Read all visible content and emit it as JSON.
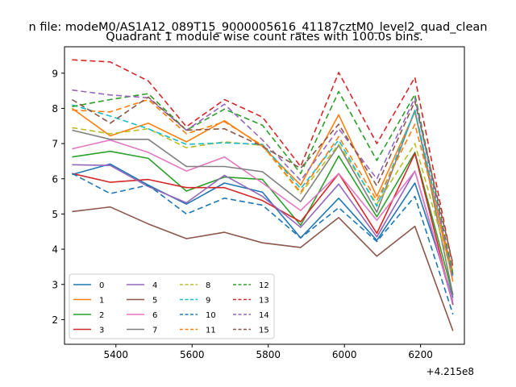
{
  "figure": {
    "suptitle": "n file: modeM0/AS1A12_089T15_9000005616_41187cztM0_level2_quad_clean",
    "title": "Quadrant 1 module wise count rates with 100.0s bins.",
    "x_offset_label": "+4.215e8"
  },
  "chart_data": {
    "type": "line",
    "title": "Quadrant 1 module wise count rates with 100.0s bins.",
    "xlabel": "",
    "ylabel": "",
    "x_offset": 421500000,
    "xlim": [
      5265,
      6315
    ],
    "ylim": [
      1.3,
      9.75
    ],
    "xticks": [
      5400,
      5600,
      5800,
      6000,
      6200
    ],
    "xtick_labels": [
      "5400",
      "5600",
      "5800",
      "6000",
      "6200"
    ],
    "yticks": [
      2,
      3,
      4,
      5,
      6,
      7,
      8,
      9
    ],
    "ytick_labels": [
      "2",
      "3",
      "4",
      "5",
      "6",
      "7",
      "8",
      "9"
    ],
    "x": [
      5285,
      5385,
      5485,
      5585,
      5685,
      5785,
      5885,
      5985,
      6085,
      6185,
      6285
    ],
    "legend_position": "lower-left",
    "legend_columns": 4,
    "series": [
      {
        "name": "0",
        "color": "#1f77b4",
        "dash": "solid",
        "values": [
          6.12,
          6.42,
          5.82,
          5.28,
          5.88,
          5.62,
          4.32,
          5.45,
          4.25,
          5.88,
          2.62
        ]
      },
      {
        "name": "1",
        "color": "#ff7f0e",
        "dash": "solid",
        "values": [
          8.0,
          7.22,
          7.58,
          7.05,
          7.65,
          6.92,
          5.82,
          7.82,
          5.5,
          7.9,
          3.08
        ]
      },
      {
        "name": "2",
        "color": "#2ca02c",
        "dash": "solid",
        "values": [
          6.62,
          6.78,
          6.58,
          5.65,
          6.05,
          5.98,
          4.68,
          6.65,
          4.92,
          6.75,
          2.7
        ]
      },
      {
        "name": "3",
        "color": "#d62728",
        "dash": "solid",
        "values": [
          6.15,
          5.9,
          5.98,
          5.75,
          5.75,
          5.38,
          4.78,
          6.15,
          4.45,
          6.72,
          2.42
        ]
      },
      {
        "name": "4",
        "color": "#9467bd",
        "dash": "solid",
        "values": [
          6.4,
          6.38,
          5.78,
          5.32,
          6.1,
          5.5,
          4.62,
          5.85,
          4.35,
          6.22,
          2.45
        ]
      },
      {
        "name": "5",
        "color": "#8c564b",
        "dash": "solid",
        "values": [
          5.07,
          5.2,
          4.72,
          4.3,
          4.48,
          4.18,
          4.05,
          4.9,
          3.8,
          4.65,
          1.68
        ]
      },
      {
        "name": "6",
        "color": "#e377c2",
        "dash": "solid",
        "values": [
          6.85,
          7.1,
          6.75,
          6.22,
          6.62,
          5.88,
          5.1,
          6.15,
          4.82,
          6.22,
          2.52
        ]
      },
      {
        "name": "7",
        "color": "#7f7f7f",
        "dash": "solid",
        "values": [
          7.38,
          7.12,
          7.12,
          6.35,
          6.35,
          6.2,
          5.35,
          6.95,
          5.05,
          7.95,
          2.7
        ]
      },
      {
        "name": "8",
        "color": "#bcbd22",
        "dash": "dashed",
        "values": [
          7.45,
          7.28,
          7.42,
          6.88,
          7.05,
          6.95,
          5.58,
          6.98,
          5.28,
          7.0,
          3.2
        ]
      },
      {
        "name": "9",
        "color": "#17becf",
        "dash": "dashed",
        "values": [
          8.1,
          7.78,
          7.42,
          6.98,
          7.02,
          6.98,
          5.72,
          7.1,
          5.22,
          7.95,
          3.25
        ]
      },
      {
        "name": "10",
        "color": "#1f77b4",
        "dash": "dashed",
        "values": [
          6.15,
          5.58,
          5.82,
          5.0,
          5.45,
          5.25,
          4.32,
          5.18,
          4.22,
          5.5,
          2.15
        ]
      },
      {
        "name": "11",
        "color": "#ff7f0e",
        "dash": "dashed",
        "values": [
          7.95,
          7.9,
          8.25,
          7.28,
          7.62,
          6.95,
          5.62,
          7.2,
          5.38,
          7.55,
          3.35
        ]
      },
      {
        "name": "12",
        "color": "#2ca02c",
        "dash": "dashed",
        "values": [
          8.05,
          8.25,
          8.42,
          7.38,
          7.98,
          7.52,
          6.15,
          8.48,
          6.52,
          8.4,
          3.3
        ]
      },
      {
        "name": "13",
        "color": "#d62728",
        "dash": "dashed",
        "values": [
          9.38,
          9.32,
          8.78,
          7.48,
          8.25,
          7.75,
          6.35,
          9.02,
          7.0,
          8.88,
          3.5
        ]
      },
      {
        "name": "14",
        "color": "#9467bd",
        "dash": "dashed",
        "values": [
          8.52,
          8.38,
          8.3,
          7.38,
          8.12,
          7.1,
          5.95,
          7.42,
          6.0,
          8.3,
          3.15
        ]
      },
      {
        "name": "15",
        "color": "#8c564b",
        "dash": "dashed",
        "values": [
          8.25,
          7.58,
          8.32,
          7.38,
          7.42,
          6.92,
          6.3,
          7.55,
          5.8,
          8.2,
          3.58
        ]
      }
    ]
  }
}
